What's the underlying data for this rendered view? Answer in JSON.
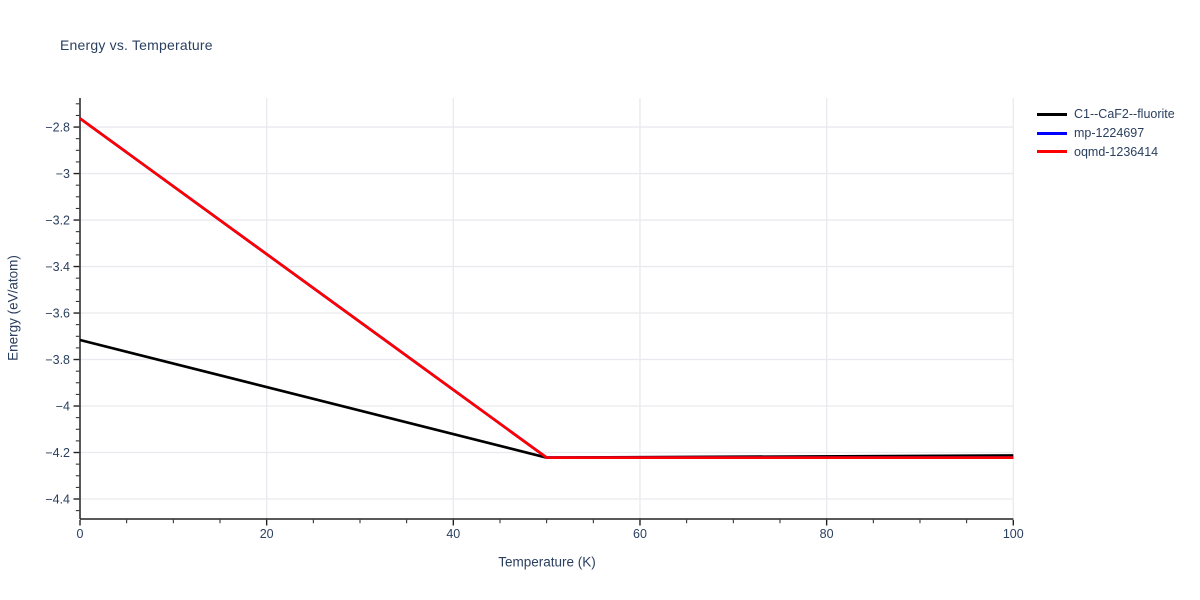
{
  "chart_data": {
    "type": "line",
    "title": "Energy vs. Temperature",
    "xlabel": "Temperature (K)",
    "ylabel": "Energy (eV/atom)",
    "xlim": [
      0,
      100
    ],
    "ylim": [
      -4.486,
      -2.675
    ],
    "x_ticks": [
      0,
      20,
      40,
      60,
      80,
      100
    ],
    "y_ticks": [
      -4.4,
      -4.2,
      -4,
      -3.8,
      -3.6,
      -3.4,
      -3.2,
      -3,
      -2.8
    ],
    "x_minor_step": 5,
    "y_minor_step": 0.05,
    "grid": true,
    "legend_position": "top-right",
    "colors": {
      "background": "#ffffff",
      "grid": "#e9e9ef",
      "axis": "#222222",
      "text": "#2a3f5f"
    },
    "series": [
      {
        "name": "C1--CaF2--fluorite",
        "color": "#000000",
        "x": [
          0,
          50,
          100
        ],
        "y": [
          -3.716,
          -4.222,
          -4.213
        ]
      },
      {
        "name": "mp-1224697",
        "color": "#0000ff",
        "x": [
          0,
          50,
          100
        ],
        "y": [
          -2.763,
          -4.222,
          -4.222
        ]
      },
      {
        "name": "oqmd-1236414",
        "color": "#ff0000",
        "x": [
          0,
          50,
          100
        ],
        "y": [
          -2.763,
          -4.222,
          -4.222
        ]
      }
    ]
  }
}
